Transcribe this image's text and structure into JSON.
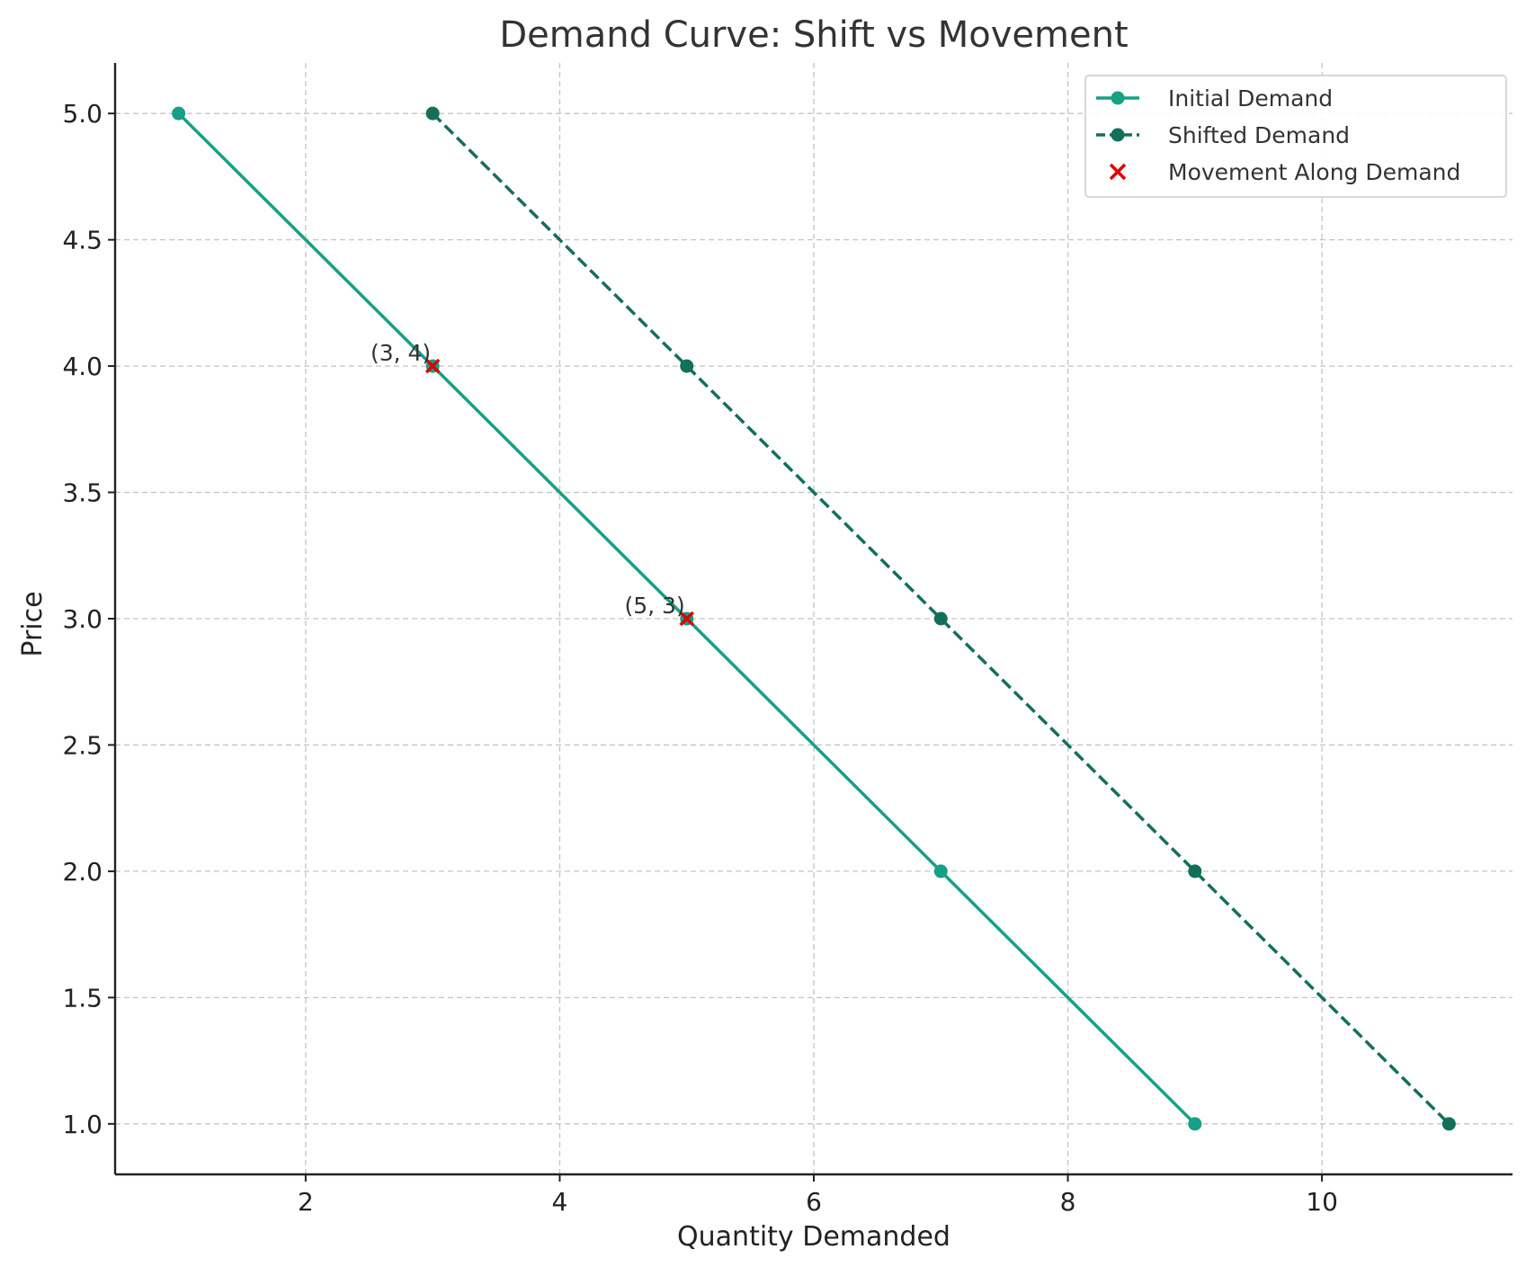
{
  "chart_data": {
    "type": "line",
    "title": "Demand Curve: Shift vs Movement",
    "xlabel": "Quantity Demanded",
    "ylabel": "Price",
    "xlim": [
      0.5,
      11.5
    ],
    "ylim": [
      0.8,
      5.2
    ],
    "xticks": [
      2,
      4,
      6,
      8,
      10
    ],
    "xtick_labels": [
      "2",
      "4",
      "6",
      "8",
      "10"
    ],
    "yticks": [
      1.0,
      1.5,
      2.0,
      2.5,
      3.0,
      3.5,
      4.0,
      4.5,
      5.0
    ],
    "ytick_labels": [
      "1.0",
      "1.5",
      "2.0",
      "2.5",
      "3.0",
      "3.5",
      "4.0",
      "4.5",
      "5.0"
    ],
    "grid": true,
    "legend_position": "top-right",
    "series": [
      {
        "name": "Initial Demand",
        "style": "solid",
        "marker": "circle",
        "color": "#16a085",
        "x": [
          1,
          3,
          5,
          7,
          9
        ],
        "y": [
          5,
          4,
          3,
          2,
          1
        ]
      },
      {
        "name": "Shifted Demand",
        "style": "dashed",
        "marker": "circle",
        "color": "#136f5a",
        "x": [
          3,
          5,
          7,
          9,
          11
        ],
        "y": [
          5,
          4,
          3,
          2,
          1
        ]
      },
      {
        "name": "Movement Along Demand",
        "style": "none",
        "marker": "x",
        "color": "#e00000",
        "x": [
          3,
          5
        ],
        "y": [
          4,
          3
        ]
      }
    ],
    "annotations": [
      {
        "text": "(3, 4)",
        "x": 3,
        "y": 4
      },
      {
        "text": "(5, 3)",
        "x": 5,
        "y": 3
      }
    ]
  }
}
